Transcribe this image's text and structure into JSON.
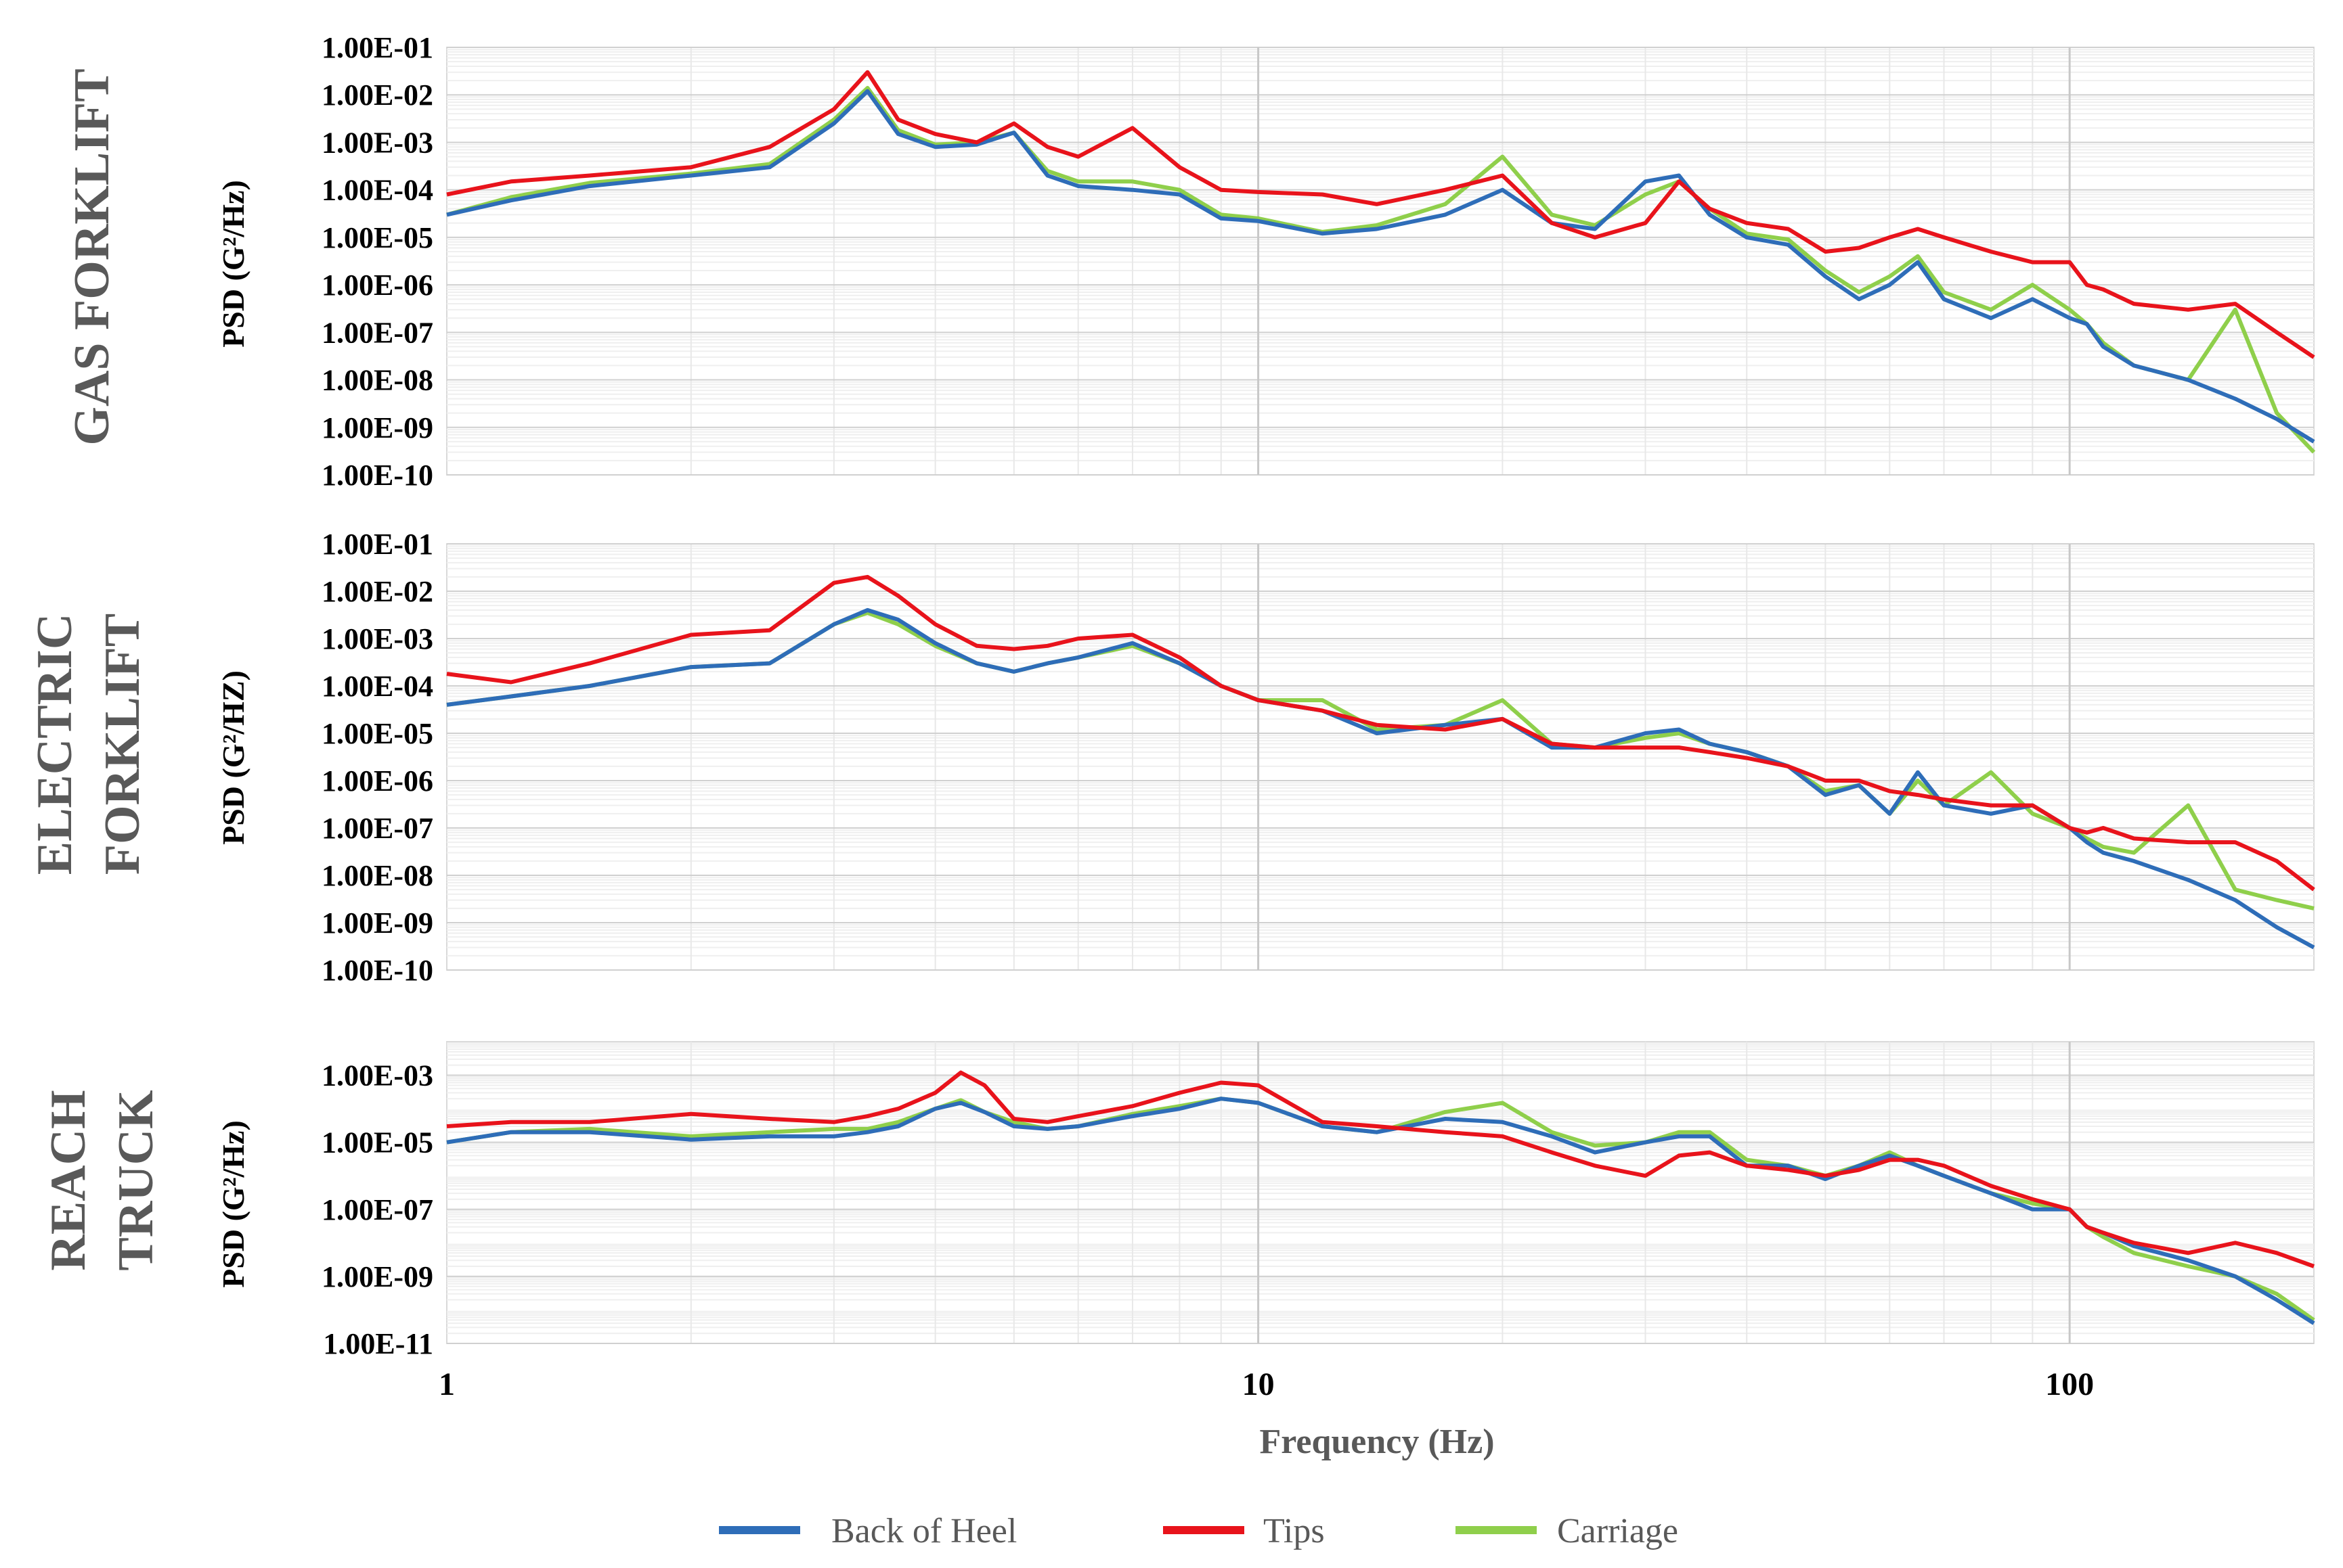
{
  "chart_data": [
    {
      "type": "line",
      "panel_title": "GAS FORKLIFT",
      "ylabel": "PSD (G²/Hz)",
      "xlabel": "Frequency (Hz)",
      "x_scale": "log",
      "y_scale": "log",
      "xlim": [
        1,
        200
      ],
      "ylim": [
        1e-10,
        0.1
      ],
      "y_tick_labels": [
        "1.00E-01",
        "1.00E-02",
        "1.00E-03",
        "1.00E-04",
        "1.00E-05",
        "1.00E-06",
        "1.00E-07",
        "1.00E-08",
        "1.00E-09",
        "1.00E-10"
      ],
      "x": [
        1,
        1.2,
        1.5,
        2,
        2.5,
        3,
        3.3,
        3.6,
        4,
        4.5,
        5,
        5.5,
        6,
        7,
        8,
        9,
        10,
        12,
        14,
        17,
        20,
        23,
        26,
        30,
        33,
        36,
        40,
        45,
        50,
        55,
        60,
        65,
        70,
        80,
        90,
        100,
        105,
        110,
        120,
        140,
        160,
        180,
        200
      ],
      "series": [
        {
          "name": "Back of Heel",
          "color": "#2e6db8",
          "values": [
            3e-05,
            6e-05,
            0.00012,
            0.0002,
            0.0003,
            0.0025,
            0.012,
            0.0015,
            0.0008,
            0.0009,
            0.0016,
            0.0002,
            0.00012,
            0.0001,
            8e-05,
            2.5e-05,
            2.2e-05,
            1.2e-05,
            1.5e-05,
            3e-05,
            0.0001,
            2e-05,
            1.5e-05,
            0.00015,
            0.0002,
            3e-05,
            1e-05,
            7e-06,
            1.5e-06,
            5e-07,
            1e-06,
            3e-06,
            5e-07,
            2e-07,
            5e-07,
            2e-07,
            1.5e-07,
            5e-08,
            2e-08,
            1e-08,
            4e-09,
            1.5e-09,
            5e-10
          ]
        },
        {
          "name": "Tips",
          "color": "#e8131b",
          "values": [
            8e-05,
            0.00015,
            0.0002,
            0.0003,
            0.0008,
            0.005,
            0.03,
            0.003,
            0.0015,
            0.001,
            0.0025,
            0.0008,
            0.0005,
            0.002,
            0.0003,
            0.0001,
            9e-05,
            8e-05,
            5e-05,
            0.0001,
            0.0002,
            2e-05,
            1e-05,
            2e-05,
            0.00015,
            4e-05,
            2e-05,
            1.5e-05,
            5e-06,
            6e-06,
            1e-05,
            1.5e-05,
            1e-05,
            5e-06,
            3e-06,
            3e-06,
            1e-06,
            8e-07,
            4e-07,
            3e-07,
            4e-07,
            1e-07,
            3e-08
          ]
        },
        {
          "name": "Carriage",
          "color": "#8fcf4b",
          "values": [
            3e-05,
            7e-05,
            0.00014,
            0.00022,
            0.00035,
            0.003,
            0.014,
            0.0018,
            0.0009,
            0.001,
            0.0016,
            0.00025,
            0.00015,
            0.00015,
            0.0001,
            3e-05,
            2.5e-05,
            1.3e-05,
            1.8e-05,
            5e-05,
            0.0005,
            3e-05,
            1.8e-05,
            8e-05,
            0.00015,
            4e-05,
            1.2e-05,
            9e-06,
            2e-06,
            7e-07,
            1.5e-06,
            4e-06,
            7e-07,
            3e-07,
            1e-06,
            3e-07,
            1.5e-07,
            6e-08,
            2e-08,
            1e-08,
            3e-07,
            2e-09,
            3e-10
          ]
        }
      ]
    },
    {
      "type": "line",
      "panel_title": "ELECTRIC FORKLIFT",
      "ylabel": "PSD (G²/HZ)",
      "xlabel": "Frequency (Hz)",
      "x_scale": "log",
      "y_scale": "log",
      "xlim": [
        1,
        200
      ],
      "ylim": [
        1e-10,
        0.1
      ],
      "y_tick_labels": [
        "1.00E-01",
        "1.00E-02",
        "1.00E-03",
        "1.00E-04",
        "1.00E-05",
        "1.00E-06",
        "1.00E-07",
        "1.00E-08",
        "1.00E-09",
        "1.00E-10"
      ],
      "x": [
        1,
        1.2,
        1.5,
        2,
        2.5,
        3,
        3.3,
        3.6,
        4,
        4.5,
        5,
        5.5,
        6,
        7,
        8,
        9,
        10,
        12,
        14,
        17,
        20,
        23,
        26,
        30,
        33,
        36,
        40,
        45,
        50,
        55,
        60,
        65,
        70,
        80,
        90,
        100,
        105,
        110,
        120,
        140,
        160,
        180,
        200
      ],
      "series": [
        {
          "name": "Back of Heel",
          "color": "#2e6db8",
          "values": [
            4e-05,
            6e-05,
            0.0001,
            0.00025,
            0.0003,
            0.002,
            0.004,
            0.0025,
            0.0008,
            0.0003,
            0.0002,
            0.0003,
            0.0004,
            0.0008,
            0.0003,
            0.0001,
            5e-05,
            3e-05,
            1e-05,
            1.5e-05,
            2e-05,
            5e-06,
            5e-06,
            1e-05,
            1.2e-05,
            6e-06,
            4e-06,
            2e-06,
            5e-07,
            8e-07,
            2e-07,
            1.5e-06,
            3e-07,
            2e-07,
            3e-07,
            1e-07,
            5e-08,
            3e-08,
            2e-08,
            8e-09,
            3e-09,
            8e-10,
            3e-10
          ]
        },
        {
          "name": "Tips",
          "color": "#e8131b",
          "values": [
            0.00018,
            0.00012,
            0.0003,
            0.0012,
            0.0015,
            0.015,
            0.02,
            0.008,
            0.002,
            0.0007,
            0.0006,
            0.0007,
            0.001,
            0.0012,
            0.0004,
            0.0001,
            5e-05,
            3e-05,
            1.5e-05,
            1.2e-05,
            2e-05,
            6e-06,
            5e-06,
            5e-06,
            5e-06,
            4e-06,
            3e-06,
            2e-06,
            1e-06,
            1e-06,
            6e-07,
            5e-07,
            4e-07,
            3e-07,
            3e-07,
            1e-07,
            8e-08,
            1e-07,
            6e-08,
            5e-08,
            5e-08,
            2e-08,
            5e-09
          ]
        },
        {
          "name": "Carriage",
          "color": "#8fcf4b",
          "values": [
            4e-05,
            6e-05,
            0.0001,
            0.00025,
            0.0003,
            0.002,
            0.0035,
            0.002,
            0.0007,
            0.0003,
            0.0002,
            0.0003,
            0.0004,
            0.0007,
            0.0003,
            0.0001,
            5e-05,
            5e-05,
            1.2e-05,
            1.5e-05,
            5e-05,
            6e-06,
            5e-06,
            8e-06,
            1e-05,
            6e-06,
            4e-06,
            2e-06,
            6e-07,
            8e-07,
            2e-07,
            1e-06,
            3e-07,
            1.5e-06,
            2e-07,
            1e-07,
            6e-08,
            4e-08,
            3e-08,
            3e-07,
            5e-09,
            3e-09,
            2e-09
          ]
        }
      ]
    },
    {
      "type": "line",
      "panel_title": "REACH TRUCK",
      "ylabel": "PSD (G²/Hz)",
      "xlabel": "Frequency (Hz)",
      "x_scale": "log",
      "y_scale": "log",
      "xlim": [
        1,
        200
      ],
      "ylim": [
        1e-11,
        0.01
      ],
      "y_tick_labels": [
        "1.00E-03",
        "1.00E-05",
        "1.00E-07",
        "1.00E-09",
        "1.00E-11"
      ],
      "x": [
        1,
        1.2,
        1.5,
        2,
        2.5,
        3,
        3.3,
        3.6,
        4,
        4.3,
        4.6,
        5,
        5.5,
        6,
        7,
        8,
        9,
        10,
        12,
        14,
        17,
        20,
        23,
        26,
        30,
        33,
        36,
        40,
        45,
        50,
        55,
        60,
        65,
        70,
        80,
        90,
        100,
        105,
        110,
        120,
        140,
        160,
        180,
        200
      ],
      "series": [
        {
          "name": "Back of Heel",
          "color": "#2e6db8",
          "values": [
            1e-05,
            2e-05,
            2e-05,
            1.2e-05,
            1.5e-05,
            1.5e-05,
            2e-05,
            3e-05,
            0.0001,
            0.00015,
            8e-05,
            3e-05,
            2.5e-05,
            3e-05,
            6e-05,
            0.0001,
            0.0002,
            0.00015,
            3e-05,
            2e-05,
            5e-05,
            4e-05,
            1.5e-05,
            5e-06,
            1e-05,
            1.5e-05,
            1.5e-05,
            2e-06,
            2e-06,
            8e-07,
            2e-06,
            4e-06,
            2e-06,
            1e-06,
            3e-07,
            1e-07,
            1e-07,
            3e-08,
            2e-08,
            8e-09,
            3e-09,
            1e-09,
            2e-10,
            4e-11
          ]
        },
        {
          "name": "Tips",
          "color": "#e8131b",
          "values": [
            3e-05,
            4e-05,
            4e-05,
            7e-05,
            5e-05,
            4e-05,
            6e-05,
            0.0001,
            0.0003,
            0.0012,
            0.0005,
            5e-05,
            4e-05,
            6e-05,
            0.00012,
            0.0003,
            0.0006,
            0.0005,
            4e-05,
            3e-05,
            2e-05,
            1.5e-05,
            5e-06,
            2e-06,
            1e-06,
            4e-06,
            5e-06,
            2e-06,
            1.5e-06,
            1e-06,
            1.5e-06,
            3e-06,
            3e-06,
            2e-06,
            5e-07,
            2e-07,
            1e-07,
            3e-08,
            2e-08,
            1e-08,
            5e-09,
            1e-08,
            5e-09,
            2e-09
          ]
        },
        {
          "name": "Carriage",
          "color": "#8fcf4b",
          "values": [
            1e-05,
            2e-05,
            2.5e-05,
            1.5e-05,
            2e-05,
            2.5e-05,
            2.5e-05,
            4e-05,
            0.0001,
            0.00018,
            8e-05,
            4e-05,
            2.5e-05,
            3e-05,
            7e-05,
            0.00012,
            0.0002,
            0.00015,
            3e-05,
            2e-05,
            8e-05,
            0.00015,
            2e-05,
            8e-06,
            1e-05,
            2e-05,
            2e-05,
            3e-06,
            2e-06,
            1e-06,
            2e-06,
            5e-06,
            2e-06,
            1e-06,
            3e-07,
            1.5e-07,
            1e-07,
            3e-08,
            1.5e-08,
            5e-09,
            2e-09,
            1e-09,
            3e-10,
            5e-11
          ]
        }
      ]
    }
  ],
  "x_tick_labels": [
    "1",
    "10",
    "100"
  ],
  "xlabel": "Frequency (Hz)",
  "legend": [
    {
      "label": "Back of Heel",
      "color": "#2e6db8"
    },
    {
      "label": "Tips",
      "color": "#e8131b"
    },
    {
      "label": "Carriage",
      "color": "#8fcf4b"
    }
  ]
}
